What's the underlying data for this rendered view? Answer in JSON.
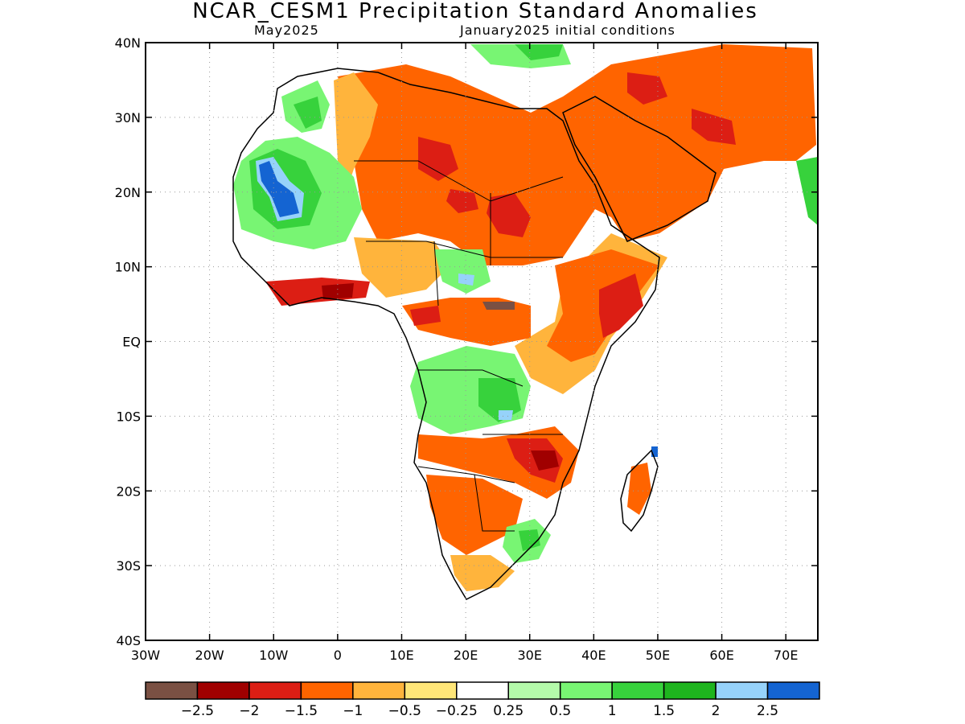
{
  "header": {
    "title": "NCAR_CESM1 Precipitation Standard Anomalies",
    "valid_month": "May2025",
    "init_conditions": "January2025 initial conditions"
  },
  "map": {
    "lon_range": [
      -30,
      75
    ],
    "lat_range": [
      -40,
      40
    ],
    "x_ticks": [
      "30W",
      "20W",
      "10W",
      "0",
      "10E",
      "20E",
      "30E",
      "40E",
      "50E",
      "60E",
      "70E"
    ],
    "y_ticks": [
      "40N",
      "30N",
      "20N",
      "10N",
      "EQ",
      "10S",
      "20S",
      "30S",
      "40S"
    ],
    "grid": "dotted"
  },
  "colorbar": {
    "colors": [
      "#7a5043",
      "#a00000",
      "#dc1e14",
      "#ff6400",
      "#ffb43c",
      "#ffe678",
      "#ffffff",
      "#b4faaa",
      "#78f573",
      "#37d23c",
      "#1eb41e",
      "#96d2fa",
      "#1464d2"
    ],
    "labels": [
      "−2.5",
      "−2",
      "−1.5",
      "−1",
      "−0.5",
      "−0.25",
      "0.25",
      "0.5",
      "1",
      "1.5",
      "2",
      "2.5"
    ]
  }
}
